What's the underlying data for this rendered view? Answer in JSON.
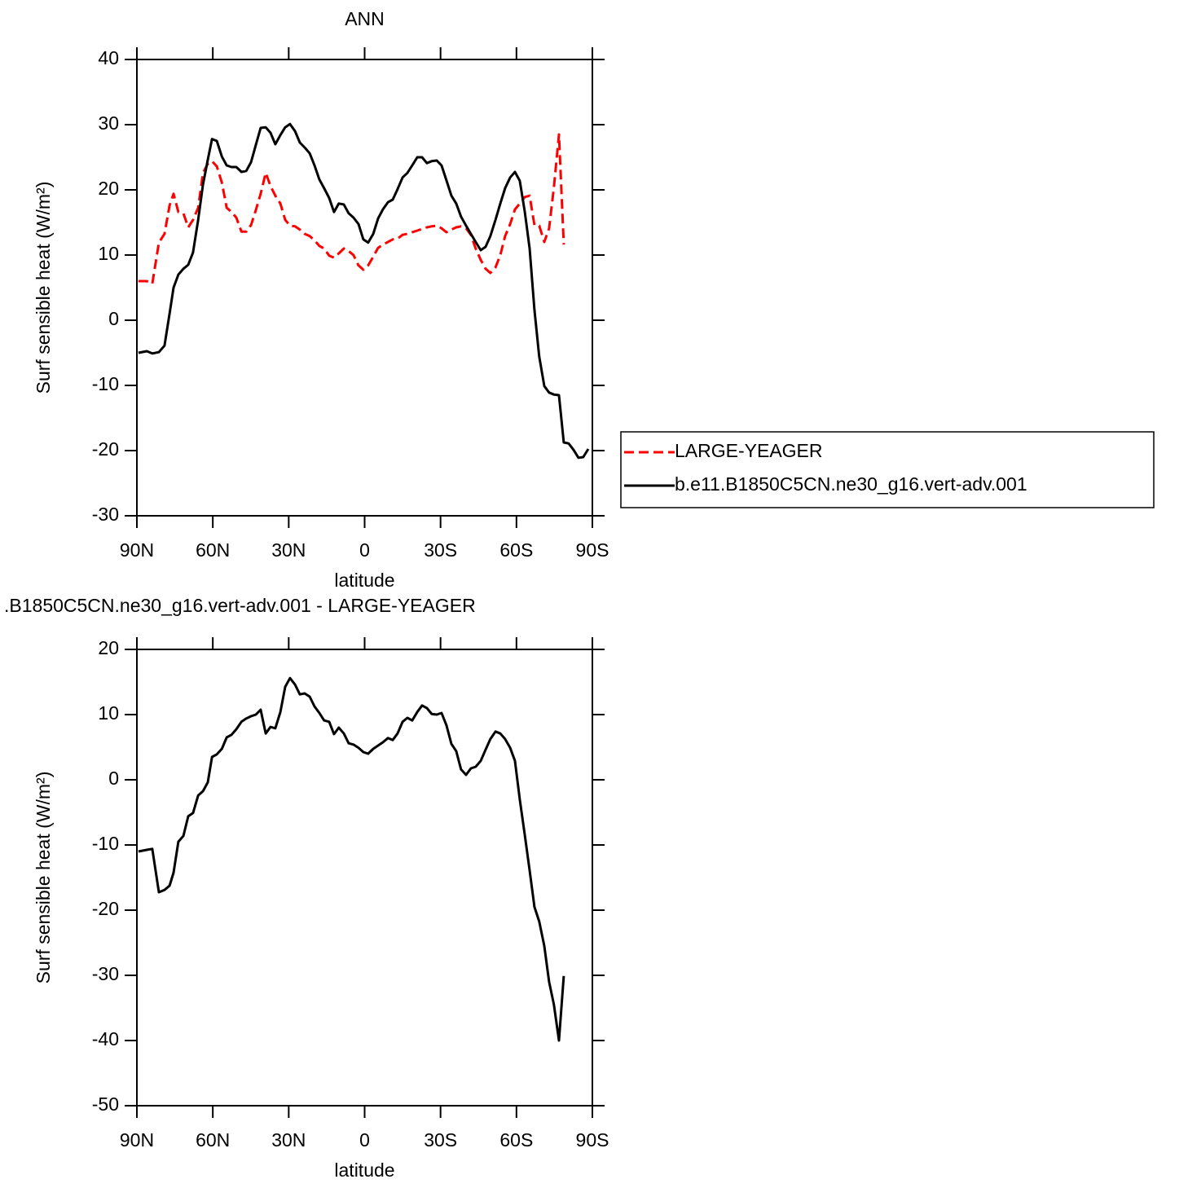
{
  "chart_data": [
    {
      "type": "line",
      "title": "ANN",
      "xlabel": "latitude",
      "ylabel": "Surf sensible heat (W/m²)",
      "x": [
        89.4,
        86.1,
        83.9,
        81.3,
        79.1,
        77.1,
        75.5,
        73.6,
        71.6,
        69.7,
        67.8,
        65.8,
        63.9,
        62.0,
        60.3,
        58.4,
        56.4,
        54.5,
        52.6,
        50.7,
        48.7,
        46.8,
        44.9,
        43.0,
        41.1,
        39.1,
        37.2,
        35.3,
        33.3,
        31.4,
        29.5,
        27.5,
        25.6,
        23.7,
        21.7,
        19.8,
        17.9,
        16.0,
        14.0,
        12.1,
        10.2,
        8.2,
        6.3,
        4.4,
        2.4,
        0.5,
        -1.4,
        -3.4,
        -5.3,
        -7.2,
        -9.2,
        -11.1,
        -13.0,
        -15.0,
        -16.9,
        -18.8,
        -20.8,
        -22.7,
        -24.6,
        -26.5,
        -28.5,
        -30.4,
        -32.3,
        -34.3,
        -36.2,
        -38.1,
        -40.1,
        -42.0,
        -43.9,
        -45.9,
        -47.8,
        -49.7,
        -51.7,
        -53.6,
        -55.5,
        -57.5,
        -59.4,
        -61.3,
        -63.3,
        -65.2,
        -67.1,
        -69.0,
        -71.0,
        -72.9,
        -74.8,
        -76.8,
        -78.7,
        -80.6,
        -82.6,
        -84.5,
        -86.4,
        -88.4
      ],
      "xlim": [
        90,
        -90
      ],
      "xticks": [
        {
          "value": 90,
          "label": "90N"
        },
        {
          "value": 60,
          "label": "60N"
        },
        {
          "value": 30,
          "label": "30N"
        },
        0,
        {
          "value": -30,
          "label": "30S"
        },
        {
          "value": -60,
          "label": "60S"
        },
        {
          "value": -90,
          "label": "90S"
        }
      ],
      "ylim": [
        -30,
        40
      ],
      "yticks": [
        -30,
        -20,
        -10,
        0,
        10,
        20,
        30,
        40
      ],
      "legend": "right",
      "series": [
        {
          "name": "LARGE-YEAGER",
          "color": "#ff0000",
          "dashed": true,
          "values": [
            6.0,
            6.0,
            5.6,
            11.9,
            13.25,
            17.6,
            19.4,
            16.6,
            16.4,
            14.25,
            15.4,
            17.25,
            22.6,
            24,
            24.4,
            23.6,
            21.1,
            17.25,
            16.6,
            15.75,
            13.6,
            13.6,
            14.6,
            16.9,
            19.4,
            22.6,
            20.6,
            19.1,
            17.9,
            15.4,
            14.5,
            14.4,
            13.9,
            13.25,
            12.9,
            12.25,
            11.4,
            11,
            9.9,
            9.6,
            10.25,
            11,
            10.6,
            10,
            8.4,
            7.75,
            8.4,
            9.75,
            11.1,
            11.6,
            12,
            12.4,
            12.5,
            13.1,
            13.25,
            13.5,
            13.75,
            14,
            14.25,
            14.4,
            14.5,
            14.1,
            13.5,
            13.9,
            14.25,
            14.4,
            14.1,
            13.1,
            11,
            9.25,
            7.9,
            7.25,
            8.1,
            10,
            12.9,
            14.75,
            17,
            17.9,
            18.9,
            19.1,
            14.6,
            14.5,
            12,
            14.1,
            20.4,
            28.5,
            11.6,
            null,
            null,
            null,
            null,
            null
          ]
        },
        {
          "name": "b.e11.B1850C5CN.ne30_g16.vert-adv.001",
          "color": "#000000",
          "dashed": false,
          "values": [
            -5,
            -4.75,
            -5.1,
            -4.9,
            -3.9,
            1,
            5,
            7,
            7.9,
            8.5,
            10.4,
            15.4,
            20.8,
            24.6,
            27.8,
            27.5,
            25.1,
            23.75,
            23.5,
            23.5,
            22.75,
            22.9,
            24.25,
            26.9,
            29.5,
            29.6,
            28.75,
            27,
            28.4,
            29.6,
            30.1,
            29,
            27.25,
            26.5,
            25.6,
            23.75,
            21.6,
            20.25,
            18.75,
            16.6,
            17.9,
            17.75,
            16.4,
            15.75,
            14.75,
            12.4,
            11.9,
            13.25,
            15.6,
            17,
            18.1,
            18.5,
            20.1,
            21.9,
            22.6,
            23.75,
            25,
            25,
            24.1,
            24.4,
            24.5,
            23.75,
            21.5,
            19.1,
            17.9,
            15.9,
            14.5,
            13.25,
            12,
            10.75,
            11.25,
            12.9,
            15.4,
            17.9,
            20.25,
            21.9,
            22.75,
            21.4,
            16.6,
            11,
            1.6,
            -5.6,
            -10.1,
            -11.1,
            -11.4,
            -11.5,
            -18.75,
            -18.9,
            -19.9,
            -21.1,
            -21,
            -19.75
          ]
        }
      ]
    },
    {
      "type": "line",
      "title": ".B1850C5CN.ne30_g16.vert-adv.001 - LARGE-YEAGER",
      "xlabel": "latitude",
      "ylabel": "Surf sensible heat (W/m²)",
      "x": [
        89.4,
        86.1,
        83.9,
        81.3,
        79.1,
        77.1,
        75.5,
        73.6,
        71.6,
        69.7,
        67.8,
        65.8,
        63.9,
        62.0,
        60.3,
        58.4,
        56.4,
        54.5,
        52.6,
        50.7,
        48.7,
        46.8,
        44.9,
        43.0,
        41.1,
        39.1,
        37.2,
        35.3,
        33.3,
        31.4,
        29.5,
        27.5,
        25.6,
        23.7,
        21.7,
        19.8,
        17.9,
        16.0,
        14.0,
        12.1,
        10.2,
        8.2,
        6.3,
        4.4,
        2.4,
        0.5,
        -1.4,
        -3.4,
        -5.3,
        -7.2,
        -9.2,
        -11.1,
        -13.0,
        -15.0,
        -16.9,
        -18.8,
        -20.8,
        -22.7,
        -24.6,
        -26.5,
        -28.5,
        -30.4,
        -32.3,
        -34.3,
        -36.2,
        -38.1,
        -40.1,
        -42.0,
        -43.9,
        -45.9,
        -47.8,
        -49.7,
        -51.7,
        -53.6,
        -55.5,
        -57.5,
        -59.4,
        -61.3,
        -63.3,
        -65.2,
        -67.1,
        -69.0,
        -71.0,
        -72.9,
        -74.8,
        -76.8,
        -78.7,
        -80.6,
        -82.6,
        -84.5,
        -86.4,
        -88.4
      ],
      "xlim": [
        90,
        -90
      ],
      "xticks": [
        {
          "value": 90,
          "label": "90N"
        },
        {
          "value": 60,
          "label": "60N"
        },
        {
          "value": 30,
          "label": "30N"
        },
        0,
        {
          "value": -30,
          "label": "30S"
        },
        {
          "value": -60,
          "label": "60S"
        },
        {
          "value": -90,
          "label": "90S"
        }
      ],
      "ylim": [
        -50,
        20
      ],
      "yticks": [
        -50,
        -40,
        -30,
        -20,
        -10,
        0,
        10,
        20
      ],
      "series": [
        {
          "color": "#000000",
          "dashed": false,
          "values": [
            -11,
            -10.75,
            -10.6,
            -17.25,
            -16.9,
            -16.25,
            -14.25,
            -9.5,
            -8.6,
            -5.6,
            -5.1,
            -2.4,
            -1.75,
            -0.4,
            3.5,
            3.9,
            4.75,
            6.5,
            6.9,
            7.75,
            8.9,
            9.4,
            9.75,
            10,
            10.75,
            7.1,
            8.1,
            7.9,
            10.4,
            14.25,
            15.6,
            14.6,
            13.1,
            13.25,
            12.75,
            11.25,
            10.25,
            9.1,
            8.9,
            7,
            8,
            7.1,
            5.6,
            5.4,
            4.9,
            4.25,
            4,
            4.75,
            5.25,
            5.75,
            6.4,
            6.1,
            7.1,
            8.9,
            9.5,
            9.1,
            10.4,
            11.4,
            11,
            10.1,
            10,
            10.25,
            8.4,
            5.5,
            4.4,
            1.6,
            0.75,
            1.75,
            2,
            2.9,
            4.6,
            6.25,
            7.4,
            7.1,
            6.25,
            4.9,
            2.9,
            -3,
            -8.5,
            -13.9,
            -19.5,
            -21.75,
            -25.5,
            -31,
            -34.5,
            -40,
            -30.1,
            null,
            null,
            null,
            null,
            null
          ]
        }
      ]
    }
  ]
}
